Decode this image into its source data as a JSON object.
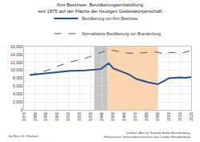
{
  "chart_data": {
    "type": "line",
    "title": "Amt Beetzsee: Bevölkerungsentwicklung seit 1875 auf der Fläche der heutigen Gebietskörperschaft",
    "series": [
      {
        "name": "Bevölkerung von Amt Beetzsee",
        "color": "#24508f",
        "line_style": "solid",
        "x": [
          1875,
          1890,
          1900,
          1910,
          1925,
          1933,
          1939,
          1946,
          1950,
          1964,
          1971,
          1981,
          1985,
          1989,
          1990,
          1995,
          2000,
          2005,
          2010,
          2015,
          2020
        ],
        "values": [
          8800,
          9200,
          9500,
          9800,
          10000,
          10200,
          10300,
          11800,
          10500,
          9000,
          7800,
          7000,
          6800,
          6600,
          6500,
          7200,
          8000,
          8100,
          8200,
          8100,
          8300
        ]
      },
      {
        "name": "Normalisierte Bevölkerung von Brandenburg",
        "color": "#4a5a78",
        "line_style": "dash",
        "x": [
          1875,
          1890,
          1900,
          1910,
          1925,
          1933,
          1939,
          1946,
          1950,
          1964,
          1971,
          1981,
          1989,
          1995,
          2000,
          2005,
          2010,
          2015,
          2020
        ],
        "values": [
          8800,
          9900,
          11000,
          12000,
          13000,
          13800,
          14500,
          15300,
          15000,
          14300,
          14300,
          14500,
          14600,
          14200,
          14500,
          14500,
          14200,
          14600,
          15000
        ]
      }
    ],
    "shaded_periods": [
      {
        "start": 1933,
        "end": 1945,
        "color": "#c4c4c4"
      },
      {
        "start": 1945,
        "end": 1990,
        "color": "#fbd3ad"
      }
    ],
    "xlim": [
      1870,
      2020
    ],
    "xticks": [
      1870,
      1880,
      1890,
      1900,
      1910,
      1920,
      1930,
      1940,
      1950,
      1960,
      1970,
      1980,
      1990,
      2000,
      2010,
      2020
    ],
    "ylim": [
      0,
      16000
    ],
    "yticks": [
      0,
      {
        "value": 2000,
        "label": "2,000"
      },
      {
        "value": 4000,
        "label": "4,000"
      },
      {
        "value": 6000,
        "label": "6,000"
      },
      {
        "value": 8000,
        "label": "8,000"
      },
      {
        "value": 10000,
        "label": "10,000"
      },
      {
        "value": 12000,
        "label": "12,000"
      },
      {
        "value": 14000,
        "label": "14,000"
      },
      {
        "value": 16000,
        "label": "16,000"
      }
    ],
    "grid": true,
    "legend": "top",
    "author": "by Hans G. Oberlack",
    "sources": [
      "Quellen: Amt für Statistik Berlin-Brandenburg",
      "Historisches Gemeindeverzeichnis des Landes Brandenburg"
    ]
  }
}
